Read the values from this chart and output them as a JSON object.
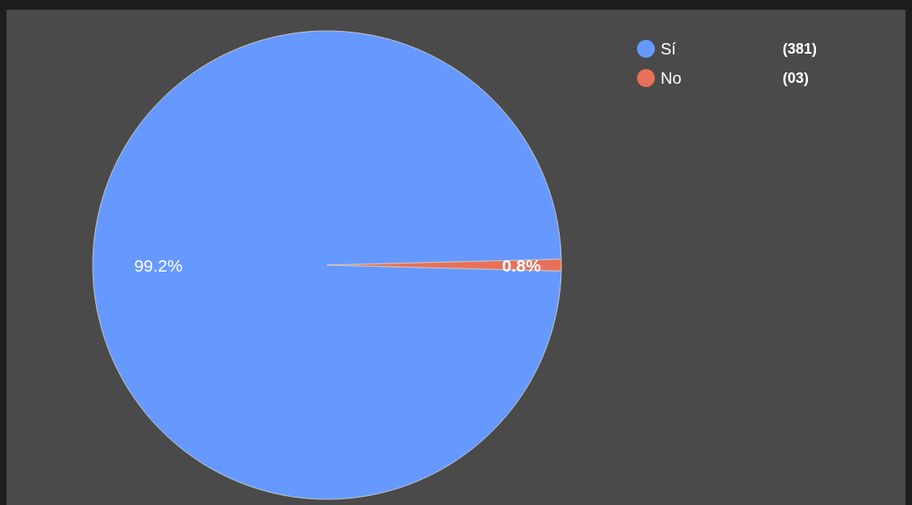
{
  "chart_data": {
    "type": "pie",
    "categories": [
      "Sí",
      "No"
    ],
    "values": [
      99.2,
      0.8
    ],
    "colors": [
      "#6699ff",
      "#e8705a"
    ],
    "value_labels": [
      "99.2%",
      "0.8%"
    ],
    "annotations": [
      "(381)",
      "(03)"
    ],
    "legend": "top right"
  }
}
